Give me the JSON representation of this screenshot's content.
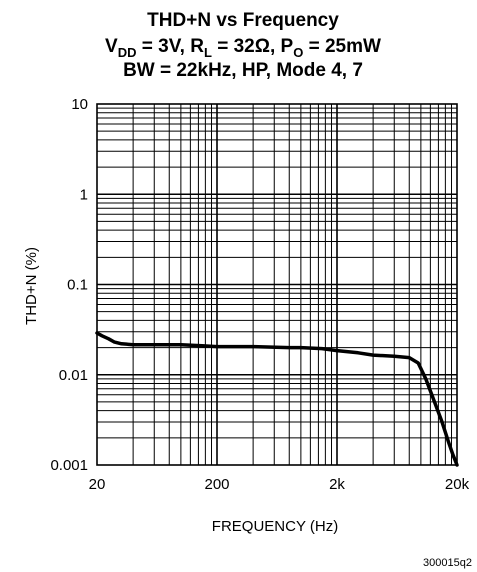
{
  "chart_data": {
    "type": "line",
    "title": {
      "line1": "THD+N vs Frequency",
      "line2": {
        "v": "V",
        "v_sub": "DD",
        "v_val": " = 3V, ",
        "r": "R",
        "r_sub": "L",
        "r_val": " = 32Ω, ",
        "p": "P",
        "p_sub": "O",
        "p_val": " = 25mW"
      },
      "line3": "BW = 22kHz, HP, Mode 4, 7"
    },
    "xlabel": "FREQUENCY (Hz)",
    "ylabel": "THD+N (%)",
    "x_scale": "log",
    "y_scale": "log",
    "xlim": [
      20,
      20000
    ],
    "ylim": [
      0.001,
      10
    ],
    "x_ticks": [
      {
        "value": 20,
        "label": "20"
      },
      {
        "value": 200,
        "label": "200"
      },
      {
        "value": 2000,
        "label": "2k"
      },
      {
        "value": 20000,
        "label": "20k"
      }
    ],
    "y_ticks": [
      {
        "value": 0.001,
        "label": "0.001"
      },
      {
        "value": 0.01,
        "label": "0.01"
      },
      {
        "value": 0.1,
        "label": "0.1"
      },
      {
        "value": 1,
        "label": "1"
      },
      {
        "value": 10,
        "label": "10"
      }
    ],
    "grid": true,
    "series": [
      {
        "x": [
          20,
          22,
          25,
          28,
          32,
          40,
          60,
          100,
          150,
          200,
          400,
          800,
          1000,
          1500,
          2000,
          3000,
          4000,
          6000,
          8000,
          9500,
          11000,
          13000,
          15000,
          17000,
          18500,
          20000
        ],
        "y": [
          0.029,
          0.027,
          0.025,
          0.023,
          0.022,
          0.0215,
          0.0215,
          0.0215,
          0.021,
          0.0205,
          0.0205,
          0.02,
          0.02,
          0.0195,
          0.0185,
          0.0175,
          0.0165,
          0.016,
          0.0155,
          0.0135,
          0.009,
          0.005,
          0.003,
          0.0018,
          0.0013,
          0.001
        ]
      }
    ],
    "figure_id": "300015q2"
  }
}
